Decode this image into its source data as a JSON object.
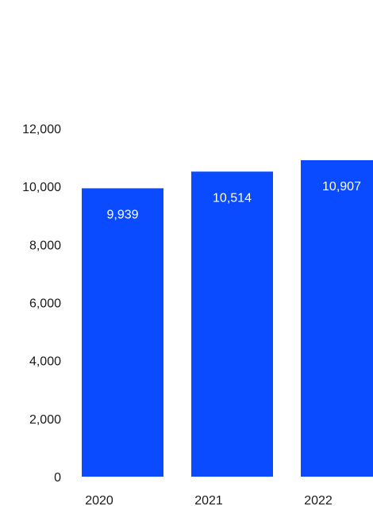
{
  "chart_data": {
    "type": "bar",
    "categories": [
      "2020",
      "2021",
      "2022"
    ],
    "values": [
      9939,
      10514,
      10907
    ],
    "value_labels": [
      "9,939",
      "10,514",
      "10,907"
    ],
    "title": "",
    "xlabel": "",
    "ylabel": "",
    "ylim": [
      0,
      12000
    ],
    "yticks": [
      0,
      2000,
      4000,
      6000,
      8000,
      10000,
      12000
    ],
    "ytick_labels": [
      "0",
      "2,000",
      "4,000",
      "6,000",
      "8,000",
      "10,000",
      "12,000"
    ],
    "grid": false,
    "legend": "none",
    "bar_color": "#0a4bff",
    "text_color": "#1a1a1a",
    "label_color": "#ffffff"
  }
}
